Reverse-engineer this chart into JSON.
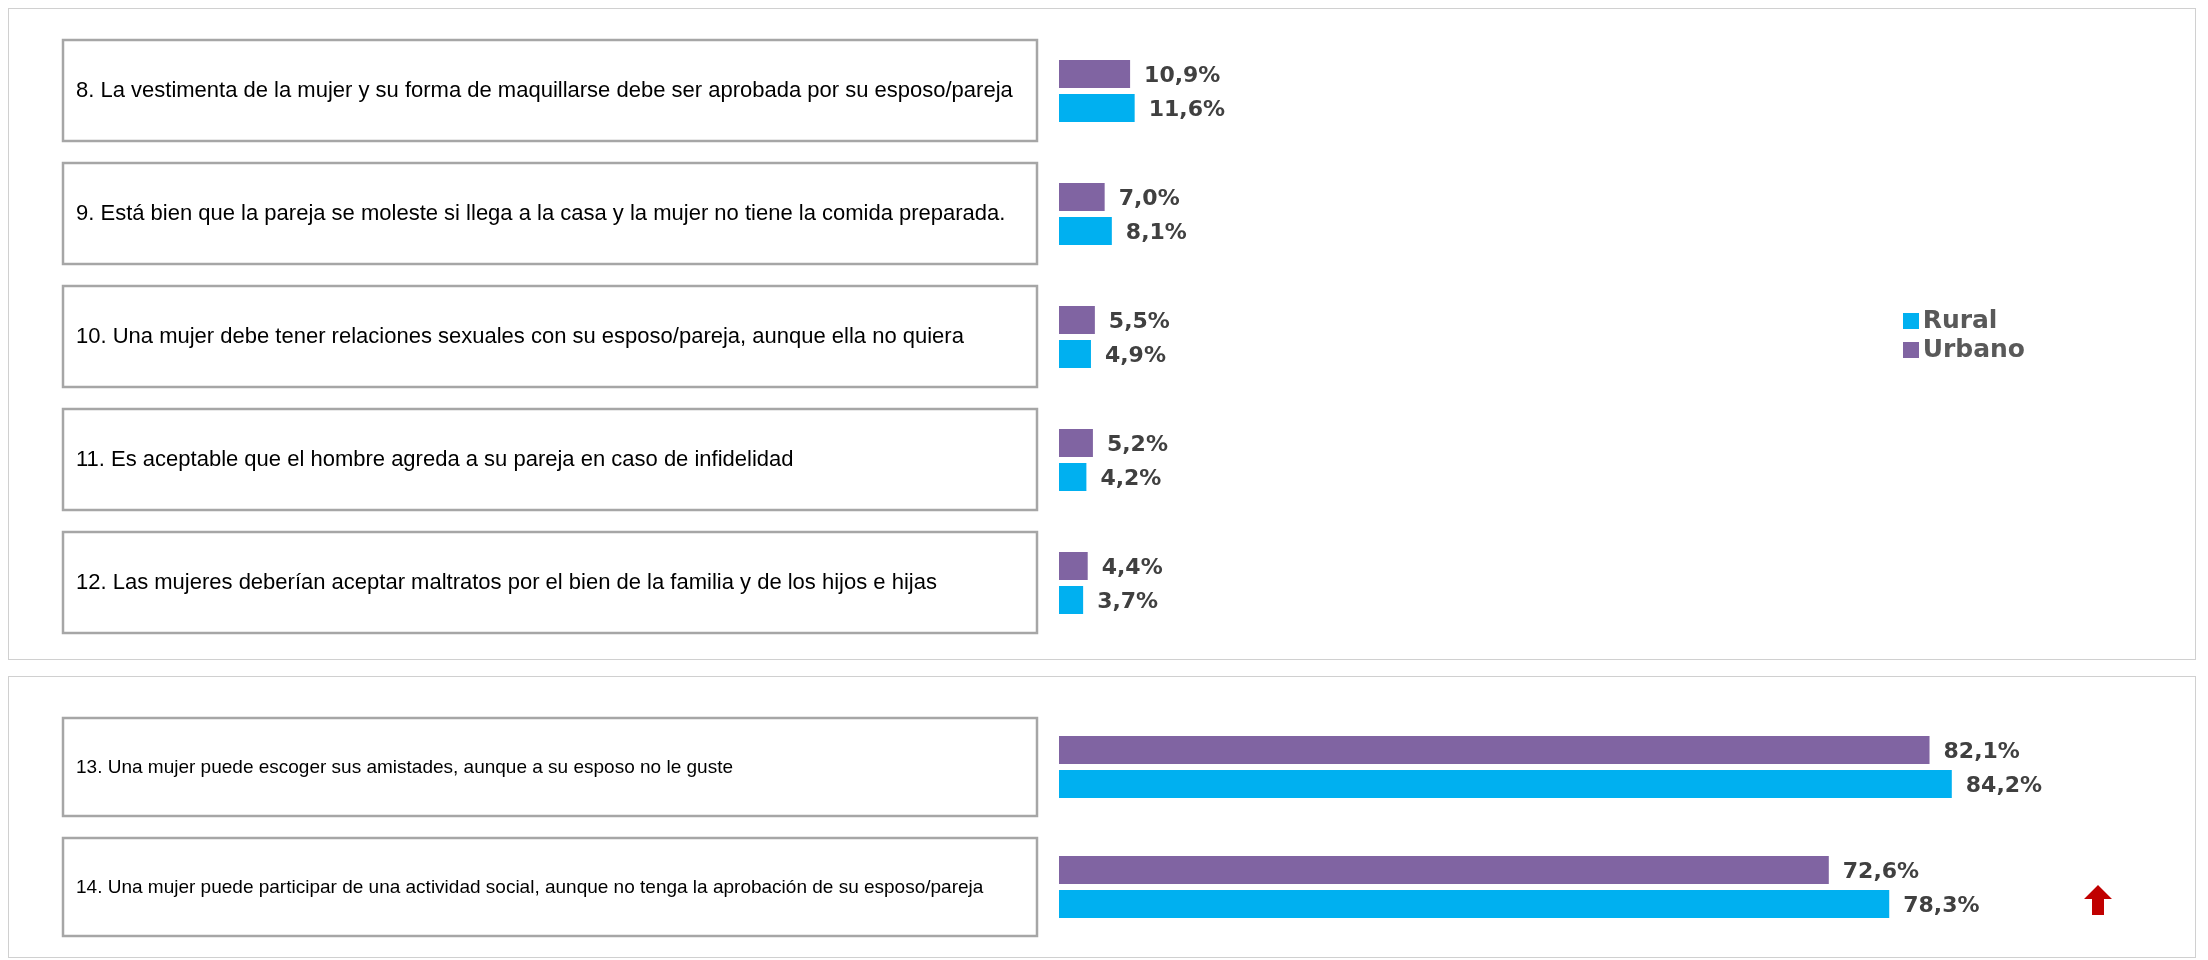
{
  "chart_data": [
    {
      "type": "bar",
      "orientation": "horizontal",
      "tick_labels": "y",
      "legend": "right",
      "categories": [
        "8. La vestimenta de la mujer y su forma de maquillarse debe ser aprobada por su esposo/pareja",
        "9. Está bien que la pareja se moleste si llega a la casa y la mujer no tiene la comida preparada.",
        "10. Una mujer debe tener relaciones sexuales con su esposo/pareja, aunque ella no quiera",
        "11. Es aceptable que el hombre agreda a su pareja en caso de infidelidad",
        "12. Las mujeres deberían aceptar maltratos por el bien de la familia y de los hijos e hijas"
      ],
      "series": [
        {
          "name": "Urbano",
          "color": "#8064a2",
          "values": [
            10.9,
            7.0,
            5.5,
            5.2,
            4.4
          ],
          "value_labels": [
            "10,9%",
            "7,0%",
            "5,5%",
            "5,2%",
            "4,4%"
          ]
        },
        {
          "name": "Rural",
          "color": "#00b0f0",
          "values": [
            11.6,
            8.1,
            4.9,
            4.2,
            3.7
          ],
          "value_labels": [
            "11,6%",
            "8,1%",
            "4,9%",
            "4,2%",
            "3,7%"
          ]
        }
      ]
    },
    {
      "type": "bar",
      "orientation": "horizontal",
      "tick_labels": "y",
      "legend": false,
      "categories": [
        "13. Una mujer puede escoger sus amistades, aunque a su esposo no le guste",
        "14. Una mujer puede participar de una actividad social, aunque no tenga la aprobación de su esposo/pareja"
      ],
      "series": [
        {
          "color": "#8064a2",
          "values": [
            82.1,
            72.6
          ],
          "value_labels": [
            "82,1%",
            "72,6%"
          ]
        },
        {
          "color": "#00b0f0",
          "values": [
            84.2,
            78.3
          ],
          "value_labels": [
            "84,2%",
            "78,3%"
          ]
        }
      ]
    }
  ]
}
